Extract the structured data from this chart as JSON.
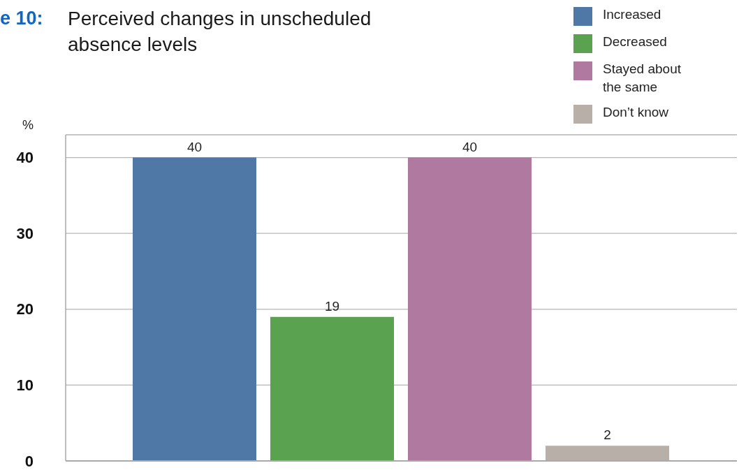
{
  "chart_data": {
    "type": "bar",
    "title": "Perceived changes in unscheduled absence levels",
    "annotations": [
      "e 10:"
    ],
    "ylabel": "%",
    "categories": [
      null
    ],
    "series": [
      {
        "name": "Increased",
        "color": "#4f78a6",
        "values": [
          40
        ]
      },
      {
        "name": "Decreased",
        "color": "#5ba250",
        "values": [
          19
        ]
      },
      {
        "name": "Stayed about the same",
        "color": "#b07aa0",
        "values": [
          40
        ]
      },
      {
        "name": "Don’t know",
        "color": "#b8afa9",
        "values": [
          2
        ]
      }
    ],
    "ylim": [
      0,
      43
    ],
    "yticks": [
      0,
      10,
      20,
      30,
      40
    ],
    "grid": "y",
    "legend": "top right",
    "data_labels": true
  }
}
